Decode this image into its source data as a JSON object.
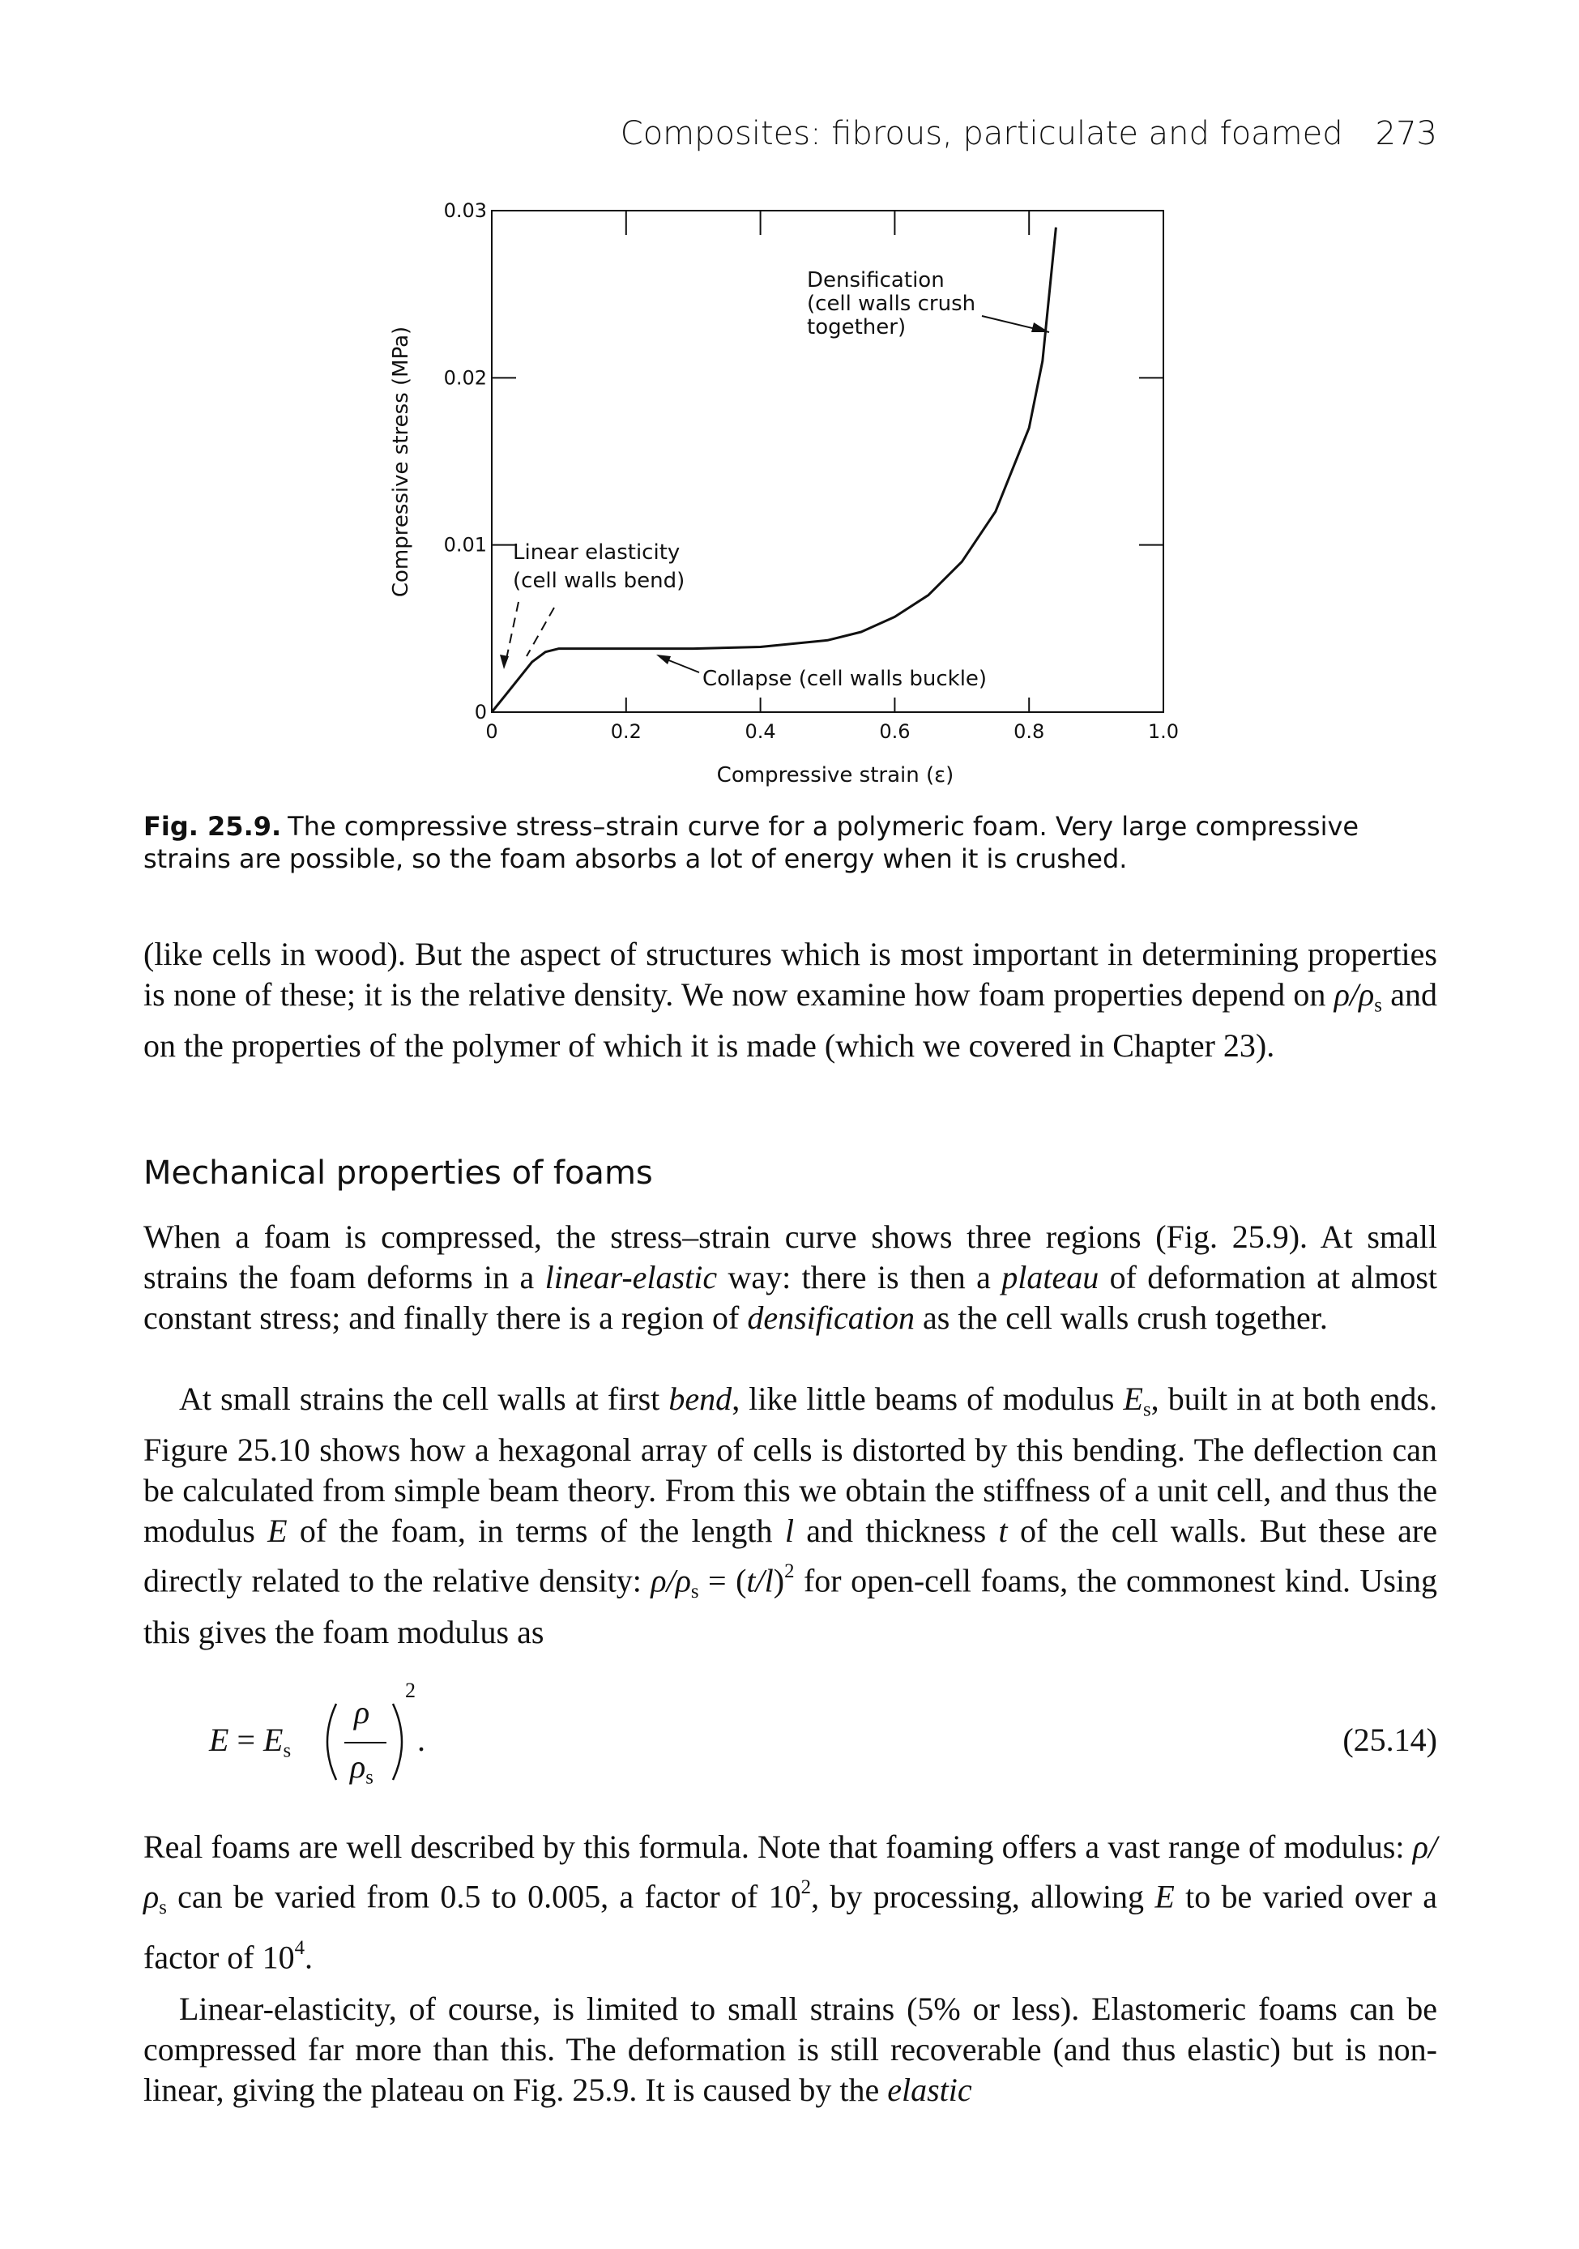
{
  "header": {
    "title": "Composites: fibrous, particulate and foamed",
    "page_number": "273"
  },
  "chart_data": {
    "type": "line",
    "xlabel": "Compressive strain (ε)",
    "ylabel": "Compressive stress (MPa)",
    "x": [
      0,
      0.02,
      0.04,
      0.06,
      0.08,
      0.1,
      0.2,
      0.3,
      0.4,
      0.5,
      0.55,
      0.6,
      0.65,
      0.7,
      0.75,
      0.8,
      0.82,
      0.84
    ],
    "values": [
      0,
      0.001,
      0.002,
      0.003,
      0.0036,
      0.0038,
      0.0038,
      0.0038,
      0.0039,
      0.0043,
      0.0048,
      0.0057,
      0.007,
      0.009,
      0.012,
      0.017,
      0.021,
      0.029
    ],
    "color": "#111111",
    "xlim": [
      0,
      1
    ],
    "ylim": [
      0,
      0.03
    ],
    "xticks": [
      0,
      0.2,
      0.4,
      0.6,
      0.8,
      {
        "value": 1,
        "label": "1.0"
      }
    ],
    "yticks": [
      0,
      0.01,
      0.02,
      0.03
    ],
    "grid": false,
    "annotations": {
      "densification": [
        "Densification",
        "(cell walls crush",
        "together)"
      ],
      "linear": [
        "Linear elasticity",
        "(cell walls bend)"
      ],
      "collapse": "Collapse (cell walls buckle)"
    }
  },
  "caption": {
    "label": "Fig. 25.9.",
    "text": "The compressive stress–strain curve for a polymeric foam. Very large compressive strains are possible, so the foam absorbs a lot of energy when it is crushed."
  },
  "heading": "Mechanical properties of foams",
  "paragraphs": [
    [
      "(like cells in wood). But the aspect of structures which is most important in determining properties is none of these; it is the relative density. We now examine how foam properties depend on ",
      {
        "text": "ρ/ρ",
        "style": "italic"
      },
      {
        "text": "s",
        "style": "sub"
      },
      " and on the properties of the polymer of which it is made (which we covered in Chapter 23)."
    ],
    [
      "When a foam is compressed, the stress–strain curve shows three regions (Fig. 25.9). At small strains the foam deforms in a ",
      {
        "text": "linear-elastic",
        "style": "italic"
      },
      " way: there is then a ",
      {
        "text": "plateau",
        "style": "italic"
      },
      " of deformation at almost constant stress; and finally there is a region of ",
      {
        "text": "densification",
        "style": "italic"
      },
      " as the cell walls crush together."
    ],
    [
      "At small strains the cell walls at first ",
      {
        "text": "bend",
        "style": "italic"
      },
      ", like little beams of modulus ",
      {
        "text": "E",
        "style": "italic"
      },
      {
        "text": "s",
        "style": "sub"
      },
      ", built in at both ends. Figure 25.10 shows how a hexagonal array of cells is distorted by this bending. The deflection can be calculated from simple beam theory. From this we obtain the stiffness of a unit cell, and thus the modulus ",
      {
        "text": "E",
        "style": "italic"
      },
      " of the foam, in terms of the length ",
      {
        "text": "l",
        "style": "italic"
      },
      " and thickness ",
      {
        "text": "t",
        "style": "italic"
      },
      " of the cell walls. But these are directly related to the relative density: ",
      {
        "text": "ρ/ρ",
        "style": "italic"
      },
      {
        "text": "s",
        "style": "sub"
      },
      " = (",
      {
        "text": "t/l",
        "style": "italic"
      },
      ")",
      {
        "text": "2",
        "style": "sup"
      },
      " for open-cell foams, the commonest kind. Using this gives the foam modulus as"
    ],
    [
      "Real foams are well described by this formula. Note that foaming offers a vast range of modulus: ",
      {
        "text": "ρ/ρ",
        "style": "italic"
      },
      {
        "text": "s",
        "style": "sub"
      },
      " can be varied from 0.5 to 0.005, a factor of 10",
      {
        "text": "2",
        "style": "sup"
      },
      ", by processing, allowing ",
      {
        "text": "E",
        "style": "italic"
      },
      " to be varied over a factor of 10",
      {
        "text": "4",
        "style": "sup"
      },
      "."
    ],
    [
      "Linear-elasticity, of course, is limited to small strains (5% or less). Elastomeric foams can be compressed far more than this. The deformation is still recoverable (and thus elastic) but is non-linear, giving the plateau on Fig. 25.9. It is caused by the ",
      {
        "text": "elastic",
        "style": "italic"
      }
    ]
  ],
  "equation": {
    "lhs": "E",
    "eq": "=",
    "coef": "E",
    "coef_sub": "s",
    "num": "ρ",
    "den": "ρ",
    "den_sub": "s",
    "power": "2",
    "end": ".",
    "number": "(25.14)"
  }
}
